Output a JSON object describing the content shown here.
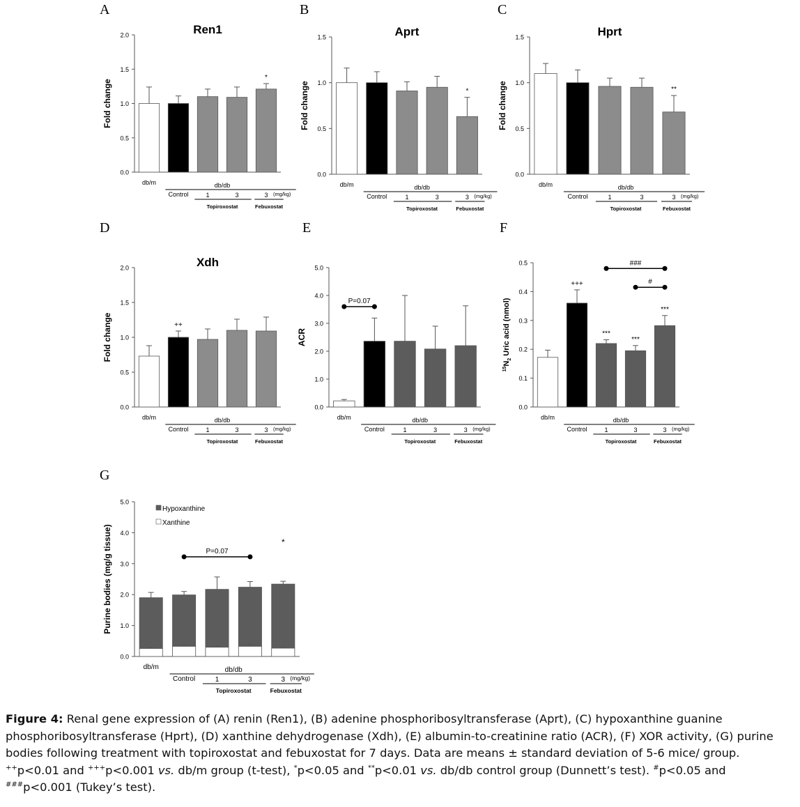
{
  "colors": {
    "white": "#ffffff",
    "black": "#000000",
    "gray_mid": "#8c8c8c",
    "gray_dark": "#5c5c5c",
    "axis": "#555555"
  },
  "groups": {
    "dbm": "db/m",
    "dbdb": "db/db",
    "control": "Control",
    "d1": "1",
    "d3": "3",
    "d3f": "3",
    "unit": "(mg/kg)",
    "topiroxostat": "Topiroxostat",
    "febuxostat": "Febuxostat"
  },
  "chart_data": [
    {
      "id": "A",
      "type": "bar",
      "letter": "A",
      "title": "Ren1",
      "ylabel": "Fold change",
      "ylim": [
        0,
        2.0
      ],
      "ticks": [
        "0.0",
        "0.5",
        "1.0",
        "1.5",
        "2.0"
      ],
      "categories": [
        "db/m",
        "Control",
        "Topiroxostat 1",
        "Topiroxostat 3",
        "Febuxostat 3"
      ],
      "values": [
        1.0,
        1.0,
        1.1,
        1.09,
        1.21
      ],
      "errors": [
        0.24,
        0.11,
        0.11,
        0.15,
        0.08
      ],
      "fills": [
        "white",
        "black",
        "gray_mid",
        "gray_mid",
        "gray_mid"
      ],
      "sig": [
        "",
        "",
        "",
        "",
        "*"
      ]
    },
    {
      "id": "B",
      "type": "bar",
      "letter": "B",
      "title": "Aprt",
      "ylabel": "Fold change",
      "ylim": [
        0,
        1.5
      ],
      "ticks": [
        "0.0",
        "0.5",
        "1.0",
        "1.5"
      ],
      "categories": [
        "db/m",
        "Control",
        "Topiroxostat 1",
        "Topiroxostat 3",
        "Febuxostat 3"
      ],
      "values": [
        1.0,
        1.0,
        0.91,
        0.95,
        0.63
      ],
      "errors": [
        0.16,
        0.12,
        0.1,
        0.12,
        0.21
      ],
      "fills": [
        "white",
        "black",
        "gray_mid",
        "gray_mid",
        "gray_mid"
      ],
      "sig": [
        "",
        "",
        "",
        "",
        "*"
      ]
    },
    {
      "id": "C",
      "type": "bar",
      "letter": "C",
      "title": "Hprt",
      "ylabel": "Fold change",
      "ylim": [
        0,
        1.5
      ],
      "ticks": [
        "0.0",
        "0.5",
        "1.0",
        "1.5"
      ],
      "categories": [
        "db/m",
        "Control",
        "Topiroxostat 1",
        "Topiroxostat 3",
        "Febuxostat 3"
      ],
      "values": [
        1.1,
        1.0,
        0.96,
        0.95,
        0.68
      ],
      "errors": [
        0.11,
        0.14,
        0.09,
        0.1,
        0.18
      ],
      "fills": [
        "white",
        "black",
        "gray_mid",
        "gray_mid",
        "gray_mid"
      ],
      "sig": [
        "",
        "",
        "",
        "",
        "**"
      ]
    },
    {
      "id": "D",
      "type": "bar",
      "letter": "D",
      "title": "Xdh",
      "ylabel": "Fold change",
      "ylim": [
        0,
        2.0
      ],
      "ticks": [
        "0.0",
        "0.5",
        "1.0",
        "1.5",
        "2.0"
      ],
      "categories": [
        "db/m",
        "Control",
        "Topiroxostat 1",
        "Topiroxostat 3",
        "Febuxostat 3"
      ],
      "values": [
        0.73,
        1.0,
        0.97,
        1.1,
        1.09
      ],
      "errors": [
        0.15,
        0.09,
        0.15,
        0.16,
        0.2
      ],
      "fills": [
        "white",
        "black",
        "gray_mid",
        "gray_mid",
        "gray_mid"
      ],
      "sig": [
        "",
        "++",
        "",
        "",
        ""
      ]
    },
    {
      "id": "E",
      "type": "bar",
      "letter": "E",
      "title": "",
      "ylabel": "ACR",
      "ylim": [
        0,
        5.0
      ],
      "ticks": [
        "0.0",
        "1.0",
        "2.0",
        "3.0",
        "4.0",
        "5.0"
      ],
      "categories": [
        "db/m",
        "Control",
        "Topiroxostat 1",
        "Topiroxostat 3",
        "Febuxostat 3"
      ],
      "values": [
        0.22,
        2.36,
        2.36,
        2.08,
        2.2
      ],
      "errors": [
        0.05,
        0.83,
        1.64,
        0.82,
        1.43
      ],
      "fills": [
        "white",
        "black",
        "gray_dark",
        "gray_dark",
        "gray_dark"
      ],
      "sig": [
        "",
        "",
        "",
        "",
        ""
      ],
      "brackets": [
        {
          "from": 0,
          "to": 1,
          "level": 3.6,
          "label": "P=0.07"
        }
      ]
    },
    {
      "id": "F",
      "type": "bar",
      "letter": "F",
      "title": "",
      "ylabel": "15N2 Uric acid (nmol)",
      "ylabel_sup": "15",
      "ylabel_main": "N",
      "ylabel_sub": "2",
      "ylabel_rest": " Uric acid (nmol)",
      "ylim": [
        0,
        0.5
      ],
      "ticks": [
        "0.0",
        "0.1",
        "0.2",
        "0.3",
        "0.4",
        "0.5"
      ],
      "categories": [
        "db/m",
        "Control",
        "Topiroxostat 1",
        "Topiroxostat 3",
        "Febuxostat 3"
      ],
      "values": [
        0.172,
        0.36,
        0.22,
        0.195,
        0.282
      ],
      "errors": [
        0.025,
        0.046,
        0.013,
        0.018,
        0.035
      ],
      "fills": [
        "white",
        "black",
        "gray_dark",
        "gray_dark",
        "gray_dark"
      ],
      "sig": [
        "",
        "+++",
        "***",
        "***",
        "***"
      ],
      "brackets": [
        {
          "from": 2,
          "to": 4,
          "level": 0.48,
          "label": "###"
        },
        {
          "from": 3,
          "to": 4,
          "level": 0.415,
          "label": "#"
        }
      ]
    },
    {
      "id": "G",
      "type": "stacked-bar",
      "letter": "G",
      "title": "",
      "ylabel": "Purine bodies (mg/g tissue)",
      "ylim": [
        0,
        5.0
      ],
      "ticks": [
        "0.0",
        "1.0",
        "2.0",
        "3.0",
        "4.0",
        "5.0"
      ],
      "categories": [
        "db/m",
        "Control",
        "Topiroxostat 1",
        "Topiroxostat 3",
        "Febuxostat 3"
      ],
      "series": [
        {
          "name": "Xanthine",
          "fill": "white",
          "values": [
            0.26,
            0.33,
            0.3,
            0.33,
            0.27
          ],
          "errors": [
            0.02,
            0.02,
            0.05,
            0.07,
            0.02
          ]
        },
        {
          "name": "Hypoxanthine",
          "fill": "gray_dark",
          "values": [
            1.64,
            1.66,
            1.87,
            1.91,
            2.07
          ],
          "errors": [
            0.17,
            0.11,
            0.4,
            0.18,
            0.09
          ]
        }
      ],
      "legend": [
        "Hypoxanthine",
        "Xanthine"
      ],
      "sig": [
        "",
        "",
        "",
        "",
        "*"
      ],
      "brackets": [
        {
          "from": 1,
          "to": 3,
          "level": 3.22,
          "label": "P=0.07"
        }
      ]
    }
  ],
  "caption": {
    "label": "Figure 4:",
    "t1": " Renal gene expression of (A) renin (Ren1), (B) adenine phosphoribosyltransferase (Aprt), (C) hypoxanthine guanine phosphoribosyltransferase (Hprt), (D) xanthine dehydrogenase (Xdh), (E) albumin-to-creatinine ratio (ACR), (F) XOR activity, (G) purine bodies following treatment with topiroxostat and febuxostat for 7 days. Data are means ± standard deviation of 5-6 mice/ group. ",
    "s1": "++",
    "t2": "p<0.01 and ",
    "s2": "+++",
    "t3": "p<0.001 ",
    "vs1": "vs.",
    "t4": " db/m group (t-test), ",
    "s3": "*",
    "t5": "p<0.05 and ",
    "s4": "**",
    "t6": "p<0.01 ",
    "vs2": "vs.",
    "t7": " db/db control group (Dunnett’s test). ",
    "s5": "#",
    "t8": "p<0.05 and ",
    "s6": "###",
    "t9": "p<0.001 (Tukey’s test)."
  }
}
